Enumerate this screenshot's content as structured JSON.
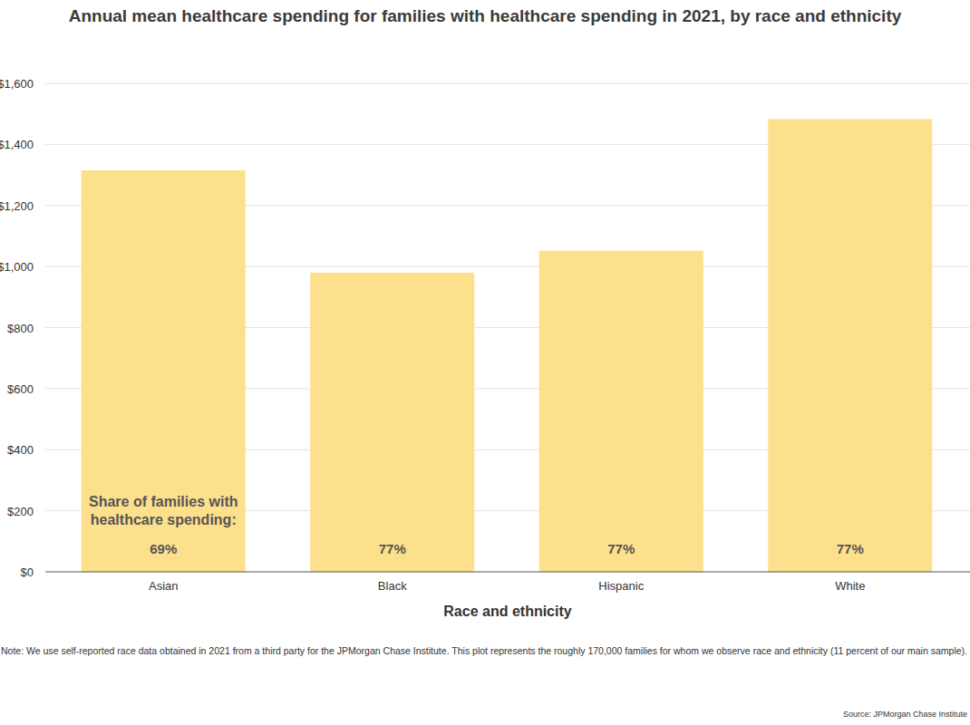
{
  "chart_data": {
    "type": "bar",
    "title": "Annual mean healthcare spending for families with healthcare spending in 2021, by race and ethnicity",
    "x_label": "Race and ethnicity",
    "categories": [
      "Asian",
      "Black",
      "Hispanic",
      "White"
    ],
    "values": [
      1315,
      980,
      1052,
      1483
    ],
    "color": "#fde08b",
    "ylim": [
      0,
      1600
    ],
    "yticks": [
      {
        "value": 0,
        "label": "$0"
      },
      {
        "value": 200,
        "label": "$200"
      },
      {
        "value": 400,
        "label": "$400"
      },
      {
        "value": 600,
        "label": "$600"
      },
      {
        "value": 800,
        "label": "$800"
      },
      {
        "value": 1000,
        "label": "$1,000"
      },
      {
        "value": 1200,
        "label": "$1,200"
      },
      {
        "value": 1400,
        "label": "$1,400"
      },
      {
        "value": 1600,
        "label": "$1,600"
      }
    ],
    "grid": true,
    "shares": {
      "label_lines": [
        "Share of families with",
        "healthcare spending:"
      ],
      "values": [
        69,
        77,
        77,
        77
      ],
      "value_labels": [
        "69%",
        "77%",
        "77%",
        "77%"
      ]
    },
    "note": "Note: We use self-reported race data obtained in 2021 from a third party for the JPMorgan Chase Institute. This plot represents the roughly 170,000 families for whom we observe race and ethnicity (11 percent of our main sample).",
    "source": "Source: JPMorgan Chase Institute"
  }
}
